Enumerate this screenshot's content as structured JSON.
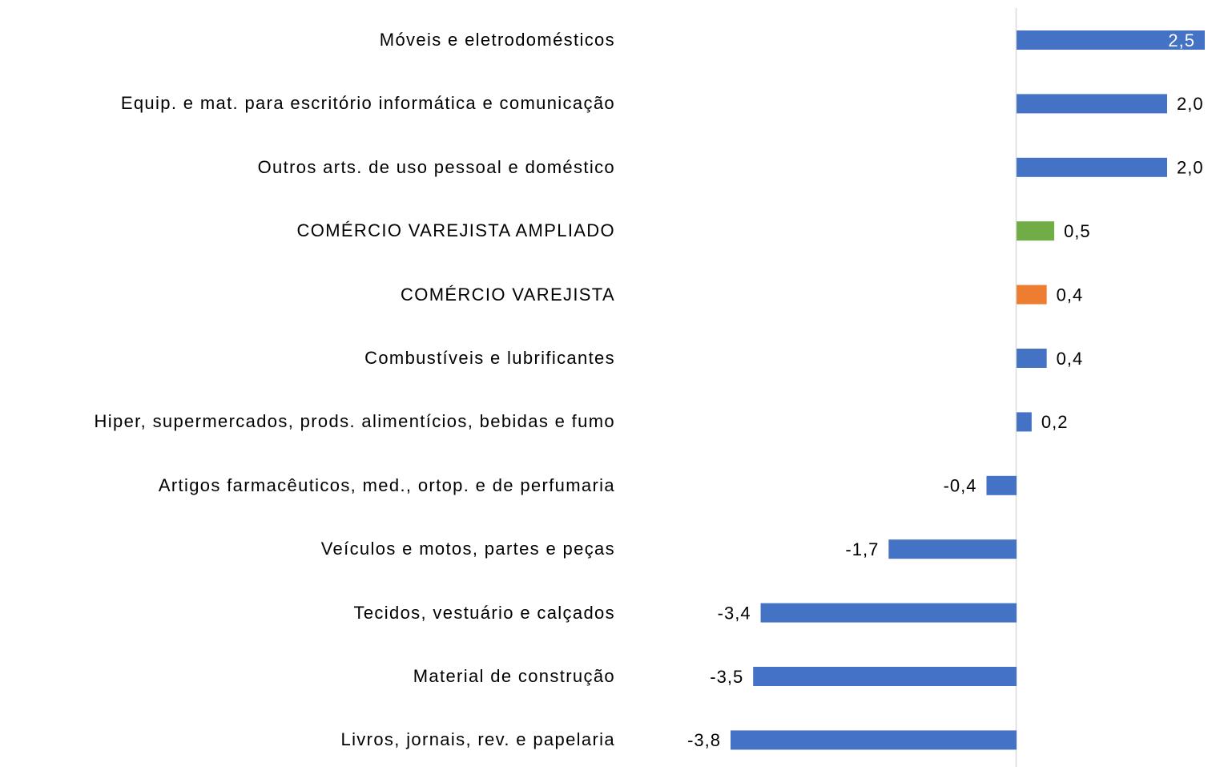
{
  "chart_data": {
    "type": "bar",
    "orientation": "horizontal",
    "categories": [
      "Móveis e eletrodomésticos",
      "Equip. e mat. para escritório informática e comunicação",
      "Outros arts. de uso pessoal e doméstico",
      "COMÉRCIO VAREJISTA AMPLIADO",
      "COMÉRCIO VAREJISTA",
      "Combustíveis e lubrificantes",
      "Hiper, supermercados, prods.  alimentícios, bebidas e fumo",
      "Artigos farmacêuticos, med., ortop. e de perfumaria",
      "Veículos e motos, partes e peças",
      "Tecidos, vestuário e calçados",
      "Material de construção",
      "Livros, jornais, rev. e papelaria"
    ],
    "values": [
      2.5,
      2.0,
      2.0,
      0.5,
      0.4,
      0.4,
      0.2,
      -0.4,
      -1.7,
      -3.4,
      -3.5,
      -3.8
    ],
    "value_labels": [
      "2,5",
      "2,0",
      "2,0",
      "0,5",
      "0,4",
      "0,4",
      "0,2",
      "-0,4",
      "-1,7",
      "-3,4",
      "-3,5",
      "-3,8"
    ],
    "colors": [
      "#4472c4",
      "#4472c4",
      "#4472c4",
      "#70ad47",
      "#ed7d31",
      "#4472c4",
      "#4472c4",
      "#4472c4",
      "#4472c4",
      "#4472c4",
      "#4472c4",
      "#4472c4"
    ]
  }
}
